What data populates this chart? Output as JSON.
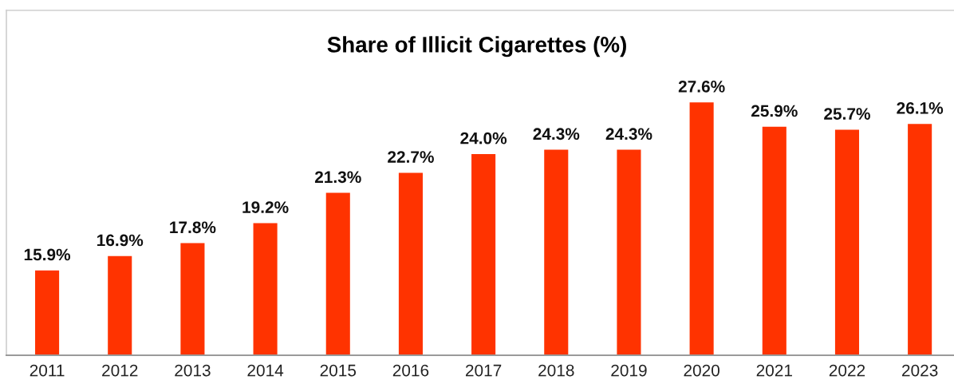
{
  "chart_data": {
    "type": "bar",
    "title": "Share of Illicit Cigarettes (%)",
    "categories": [
      "2011",
      "2012",
      "2013",
      "2014",
      "2015",
      "2016",
      "2017",
      "2018",
      "2019",
      "2020",
      "2021",
      "2022",
      "2023"
    ],
    "values": [
      15.9,
      16.9,
      17.8,
      19.2,
      21.3,
      22.7,
      24.0,
      24.3,
      24.3,
      27.6,
      25.9,
      25.7,
      26.1
    ],
    "value_labels": [
      "15.9%",
      "16.9%",
      "17.8%",
      "19.2%",
      "21.3%",
      "22.7%",
      "24.0%",
      "24.3%",
      "24.3%",
      "27.6%",
      "25.9%",
      "25.7%",
      "26.1%"
    ],
    "color": "#ff3300",
    "ylim": [
      10,
      34
    ],
    "tick_labels": "x",
    "grid": false,
    "legend": false
  }
}
